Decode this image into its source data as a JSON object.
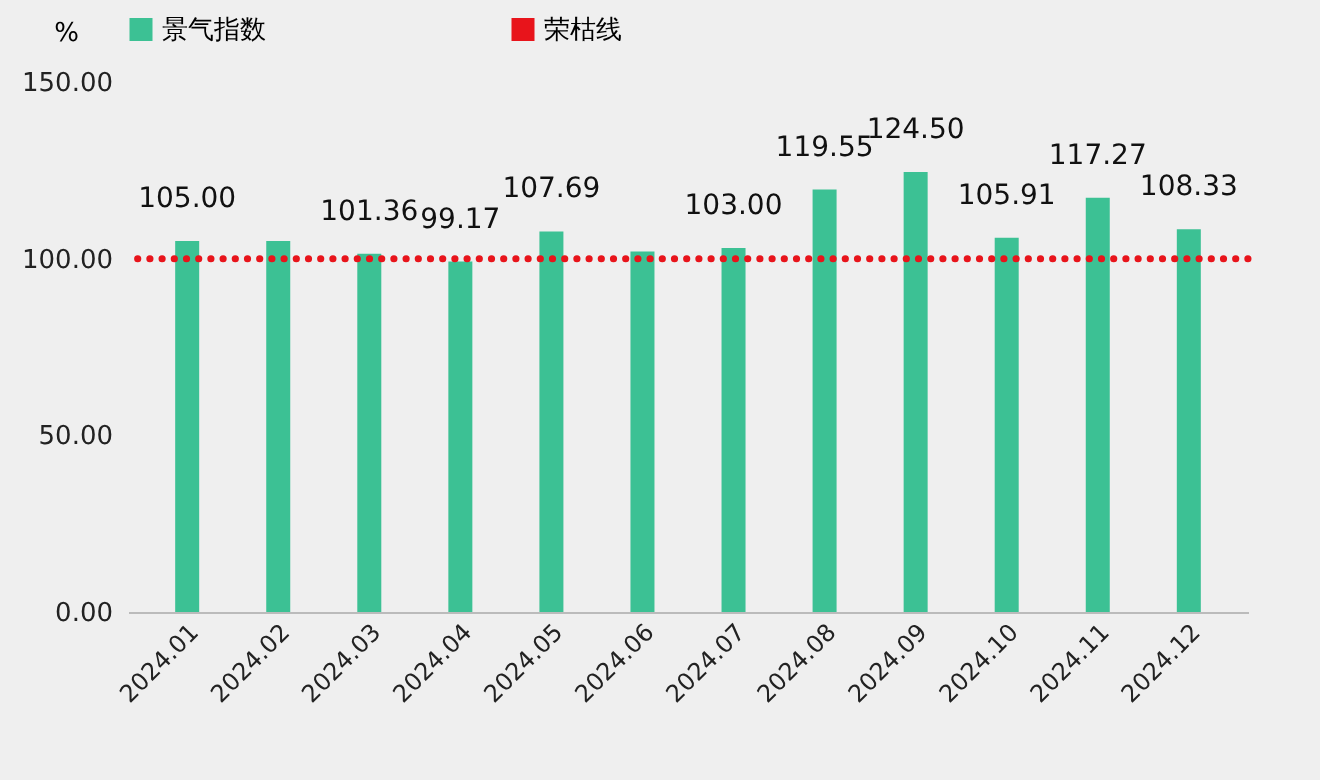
{
  "chart_data": {
    "type": "bar",
    "ylabel": "%",
    "categories": [
      "2024.01",
      "2024.02",
      "2024.03",
      "2024.04",
      "2024.05",
      "2024.06",
      "2024.07",
      "2024.08",
      "2024.09",
      "2024.10",
      "2024.11",
      "2024.12"
    ],
    "series": [
      {
        "name": "景气指数",
        "color": "#3cc194",
        "values": [
          105.0,
          105.0,
          101.36,
          99.17,
          107.69,
          102,
          103.0,
          119.55,
          124.5,
          105.91,
          117.27,
          108.33
        ],
        "value_labels": [
          "105.00",
          null,
          "101.36",
          "99.17",
          "107.69",
          null,
          "103.00",
          "119.55",
          "124.50",
          "105.91",
          "117.27",
          "108.33"
        ]
      }
    ],
    "ylim": [
      0,
      150
    ],
    "yticks": [
      {
        "value": 0,
        "label": "0.00"
      },
      {
        "value": 50,
        "label": "50.00"
      },
      {
        "value": 100,
        "label": "100.00"
      },
      {
        "value": 150,
        "label": "150.00"
      }
    ],
    "ref_lines": [
      {
        "axis": "y",
        "value": 100,
        "label": "荣枯线",
        "color": "#e8141b",
        "line_style": "dotted"
      }
    ],
    "grid": false,
    "legend": "top"
  }
}
